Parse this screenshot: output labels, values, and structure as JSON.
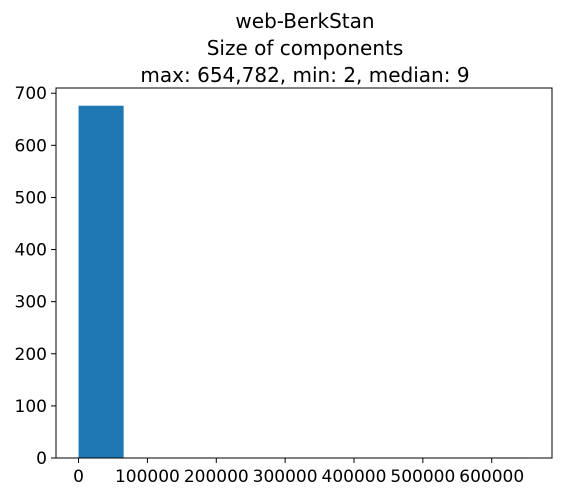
{
  "chart_data": {
    "type": "bar",
    "title": [
      "web-BerkStan",
      "Size of components",
      "max: 654,782, min: 2, median: 9"
    ],
    "xlabel": "",
    "ylabel": "",
    "xlim": [
      -32739,
      687521
    ],
    "ylim": [
      0,
      710
    ],
    "bins": [
      {
        "x0": 2,
        "x1": 65480,
        "count": 676
      },
      {
        "x0": 65480,
        "x1": 130958,
        "count": 0
      },
      {
        "x0": 130958,
        "x1": 196436,
        "count": 0
      },
      {
        "x0": 196436,
        "x1": 261914,
        "count": 0
      },
      {
        "x0": 261914,
        "x1": 327392,
        "count": 0
      },
      {
        "x0": 327392,
        "x1": 392870,
        "count": 0
      },
      {
        "x0": 392870,
        "x1": 458348,
        "count": 0
      },
      {
        "x0": 458348,
        "x1": 523826,
        "count": 0
      },
      {
        "x0": 523826,
        "x1": 589304,
        "count": 0
      },
      {
        "x0": 589304,
        "x1": 654782,
        "count": 1
      }
    ],
    "xticks": [
      0,
      100000,
      200000,
      300000,
      400000,
      500000,
      600000
    ],
    "xtick_labels": [
      "0",
      "100000",
      "200000",
      "300000",
      "400000",
      "500000",
      "600000"
    ],
    "yticks": [
      0,
      100,
      200,
      300,
      400,
      500,
      600,
      700
    ],
    "ytick_labels": [
      "0",
      "100",
      "200",
      "300",
      "400",
      "500",
      "600",
      "700"
    ],
    "bar_color": "#1f77b4",
    "grid": false,
    "legend": "none"
  }
}
